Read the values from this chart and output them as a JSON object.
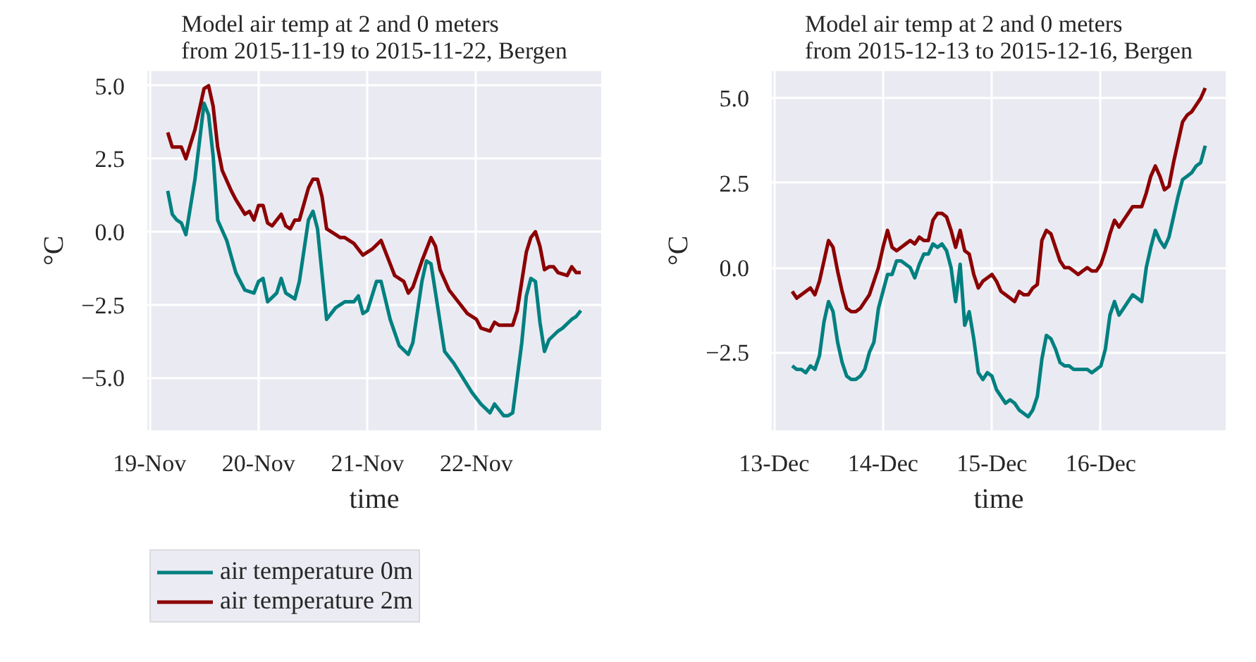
{
  "chart_data": [
    {
      "type": "line",
      "title": "Model air temp at 2 and 0 meters\nfrom 2015-11-19 to 2015-11-22, Bergen",
      "xlabel": "time",
      "ylabel": "°C",
      "xlim": [
        "2015-11-18T23:30",
        "2015-11-23T03:30"
      ],
      "ylim": [
        -6.8,
        5.5
      ],
      "xticks": [
        {
          "value": "2015-11-19",
          "label": "19-Nov"
        },
        {
          "value": "2015-11-20",
          "label": "20-Nov"
        },
        {
          "value": "2015-11-21",
          "label": "21-Nov"
        },
        {
          "value": "2015-11-22",
          "label": "22-Nov"
        }
      ],
      "yticks": [
        {
          "value": -5,
          "label": "−5.0"
        },
        {
          "value": -2.5,
          "label": "−2.5"
        },
        {
          "value": 0,
          "label": "0.0"
        },
        {
          "value": 2.5,
          "label": "2.5"
        },
        {
          "value": 5,
          "label": "5.0"
        }
      ],
      "grid": true,
      "legend": "bottom",
      "series": [
        {
          "name": "air temperature 0m",
          "color": "#008080",
          "x": [
            "2015-11-19T04:00",
            "2015-11-19T05:00",
            "2015-11-19T06:00",
            "2015-11-19T07:00",
            "2015-11-19T08:00",
            "2015-11-19T10:00",
            "2015-11-19T12:00",
            "2015-11-19T13:00",
            "2015-11-19T14:00",
            "2015-11-19T15:00",
            "2015-11-19T17:00",
            "2015-11-19T19:00",
            "2015-11-19T21:00",
            "2015-11-19T23:00",
            "2015-11-20T00:00",
            "2015-11-20T01:00",
            "2015-11-20T02:00",
            "2015-11-20T04:00",
            "2015-11-20T05:00",
            "2015-11-20T06:00",
            "2015-11-20T08:00",
            "2015-11-20T09:00",
            "2015-11-20T11:00",
            "2015-11-20T12:00",
            "2015-11-20T13:00",
            "2015-11-20T15:00",
            "2015-11-20T17:00",
            "2015-11-20T19:00",
            "2015-11-20T21:00",
            "2015-11-20T22:00",
            "2015-11-20T23:00",
            "2015-11-21T00:00",
            "2015-11-21T02:00",
            "2015-11-21T03:00",
            "2015-11-21T05:00",
            "2015-11-21T07:00",
            "2015-11-21T09:00",
            "2015-11-21T10:00",
            "2015-11-21T12:00",
            "2015-11-21T13:00",
            "2015-11-21T14:00",
            "2015-11-21T16:00",
            "2015-11-21T17:00",
            "2015-11-21T19:00",
            "2015-11-21T21:00",
            "2015-11-21T23:00",
            "2015-11-22T01:00",
            "2015-11-22T03:00",
            "2015-11-22T04:00",
            "2015-11-22T06:00",
            "2015-11-22T07:00",
            "2015-11-22T08:00",
            "2015-11-22T10:00",
            "2015-11-22T11:00",
            "2015-11-22T12:00",
            "2015-11-22T13:00",
            "2015-11-22T14:00",
            "2015-11-22T15:00",
            "2015-11-22T16:00",
            "2015-11-22T18:00",
            "2015-11-22T19:00",
            "2015-11-22T21:00",
            "2015-11-22T22:00",
            "2015-11-22T23:00"
          ],
          "values": [
            1.4,
            0.6,
            0.4,
            0.3,
            -0.1,
            1.8,
            4.4,
            4.0,
            2.6,
            0.4,
            -0.3,
            -1.4,
            -2.0,
            -2.1,
            -1.7,
            -1.6,
            -2.4,
            -2.1,
            -1.6,
            -2.1,
            -2.3,
            -1.7,
            0.4,
            0.7,
            0.1,
            -3.0,
            -2.6,
            -2.4,
            -2.4,
            -2.2,
            -2.8,
            -2.7,
            -1.7,
            -1.7,
            -3.0,
            -3.9,
            -4.2,
            -3.8,
            -1.7,
            -1.0,
            -1.1,
            -3.1,
            -4.1,
            -4.5,
            -5.0,
            -5.5,
            -5.9,
            -6.2,
            -5.9,
            -6.3,
            -6.3,
            -6.2,
            -3.8,
            -2.2,
            -1.6,
            -1.7,
            -3.1,
            -4.1,
            -3.7,
            -3.4,
            -3.3,
            -3.0,
            -2.9,
            -2.7
          ]
        },
        {
          "name": "air temperature 2m",
          "color": "#8b0000",
          "x": [
            "2015-11-19T04:00",
            "2015-11-19T05:00",
            "2015-11-19T07:00",
            "2015-11-19T08:00",
            "2015-11-19T10:00",
            "2015-11-19T12:00",
            "2015-11-19T13:00",
            "2015-11-19T14:00",
            "2015-11-19T15:00",
            "2015-11-19T16:00",
            "2015-11-19T18:00",
            "2015-11-19T19:00",
            "2015-11-19T21:00",
            "2015-11-19T22:00",
            "2015-11-19T23:00",
            "2015-11-20T00:00",
            "2015-11-20T01:00",
            "2015-11-20T02:00",
            "2015-11-20T03:00",
            "2015-11-20T05:00",
            "2015-11-20T06:00",
            "2015-11-20T07:00",
            "2015-11-20T08:00",
            "2015-11-20T09:00",
            "2015-11-20T11:00",
            "2015-11-20T12:00",
            "2015-11-20T13:00",
            "2015-11-20T14:00",
            "2015-11-20T15:00",
            "2015-11-20T17:00",
            "2015-11-20T18:00",
            "2015-11-20T19:00",
            "2015-11-20T21:00",
            "2015-11-20T23:00",
            "2015-11-21T01:00",
            "2015-11-21T03:00",
            "2015-11-21T05:00",
            "2015-11-21T06:00",
            "2015-11-21T08:00",
            "2015-11-21T09:00",
            "2015-11-21T10:00",
            "2015-11-21T12:00",
            "2015-11-21T14:00",
            "2015-11-21T15:00",
            "2015-11-21T16:00",
            "2015-11-21T18:00",
            "2015-11-21T20:00",
            "2015-11-21T22:00",
            "2015-11-22T00:00",
            "2015-11-22T01:00",
            "2015-11-22T03:00",
            "2015-11-22T04:00",
            "2015-11-22T05:00",
            "2015-11-22T07:00",
            "2015-11-22T08:00",
            "2015-11-22T09:00",
            "2015-11-22T10:00",
            "2015-11-22T11:00",
            "2015-11-22T12:00",
            "2015-11-22T13:00",
            "2015-11-22T14:00",
            "2015-11-22T15:00",
            "2015-11-22T16:00",
            "2015-11-22T17:00",
            "2015-11-22T18:00",
            "2015-11-22T20:00",
            "2015-11-22T21:00",
            "2015-11-22T22:00",
            "2015-11-22T23:00"
          ],
          "values": [
            3.4,
            2.9,
            2.9,
            2.5,
            3.5,
            4.9,
            5.0,
            4.3,
            2.9,
            2.1,
            1.4,
            1.1,
            0.6,
            0.7,
            0.4,
            0.9,
            0.9,
            0.3,
            0.2,
            0.6,
            0.2,
            0.1,
            0.4,
            0.4,
            1.5,
            1.8,
            1.8,
            1.2,
            0.1,
            -0.1,
            -0.2,
            -0.2,
            -0.4,
            -0.8,
            -0.6,
            -0.3,
            -1.1,
            -1.5,
            -1.7,
            -2.1,
            -1.9,
            -1.0,
            -0.2,
            -0.5,
            -1.3,
            -2.0,
            -2.4,
            -2.8,
            -3.0,
            -3.3,
            -3.4,
            -3.1,
            -3.2,
            -3.2,
            -3.2,
            -2.7,
            -1.7,
            -0.7,
            -0.2,
            0.0,
            -0.5,
            -1.3,
            -1.2,
            -1.2,
            -1.4,
            -1.5,
            -1.2,
            -1.4,
            -1.4
          ]
        }
      ]
    },
    {
      "type": "line",
      "title": "Model air temp at 2 and 0 meters\nfrom 2015-12-13 to 2015-12-16, Bergen",
      "xlabel": "time",
      "ylabel": "°C",
      "xlim": [
        "2015-12-12T23:30",
        "2015-12-17T03:30"
      ],
      "ylim": [
        -4.8,
        5.8
      ],
      "xticks": [
        {
          "value": "2015-12-13",
          "label": "13-Dec"
        },
        {
          "value": "2015-12-14",
          "label": "14-Dec"
        },
        {
          "value": "2015-12-15",
          "label": "15-Dec"
        },
        {
          "value": "2015-12-16",
          "label": "16-Dec"
        }
      ],
      "yticks": [
        {
          "value": -2.5,
          "label": "−2.5"
        },
        {
          "value": 0,
          "label": "0.0"
        },
        {
          "value": 2.5,
          "label": "2.5"
        },
        {
          "value": 5,
          "label": "5.0"
        }
      ],
      "grid": true,
      "x": [
        "2015-12-13T04:00",
        "2015-12-13T05:00",
        "2015-12-13T06:00",
        "2015-12-13T07:00",
        "2015-12-13T08:00",
        "2015-12-13T09:00",
        "2015-12-13T10:00",
        "2015-12-13T11:00",
        "2015-12-13T12:00",
        "2015-12-13T13:00",
        "2015-12-13T14:00",
        "2015-12-13T15:00",
        "2015-12-13T16:00",
        "2015-12-13T17:00",
        "2015-12-13T18:00",
        "2015-12-13T19:00",
        "2015-12-13T20:00",
        "2015-12-13T21:00",
        "2015-12-13T22:00",
        "2015-12-13T23:00",
        "2015-12-14T00:00",
        "2015-12-14T01:00",
        "2015-12-14T02:00",
        "2015-12-14T03:00",
        "2015-12-14T04:00",
        "2015-12-14T05:00",
        "2015-12-14T06:00",
        "2015-12-14T07:00",
        "2015-12-14T08:00",
        "2015-12-14T09:00",
        "2015-12-14T10:00",
        "2015-12-14T11:00",
        "2015-12-14T12:00",
        "2015-12-14T13:00",
        "2015-12-14T14:00",
        "2015-12-14T15:00",
        "2015-12-14T16:00",
        "2015-12-14T17:00",
        "2015-12-14T18:00",
        "2015-12-14T19:00",
        "2015-12-14T20:00",
        "2015-12-14T21:00",
        "2015-12-14T22:00",
        "2015-12-14T23:00",
        "2015-12-15T00:00",
        "2015-12-15T01:00",
        "2015-12-15T02:00",
        "2015-12-15T03:00",
        "2015-12-15T04:00",
        "2015-12-15T05:00",
        "2015-12-15T06:00",
        "2015-12-15T07:00",
        "2015-12-15T08:00",
        "2015-12-15T09:00",
        "2015-12-15T10:00",
        "2015-12-15T11:00",
        "2015-12-15T12:00",
        "2015-12-15T13:00",
        "2015-12-15T14:00",
        "2015-12-15T15:00",
        "2015-12-15T16:00",
        "2015-12-15T17:00",
        "2015-12-15T18:00",
        "2015-12-15T19:00",
        "2015-12-15T20:00",
        "2015-12-15T21:00",
        "2015-12-15T22:00",
        "2015-12-15T23:00",
        "2015-12-16T00:00",
        "2015-12-16T01:00",
        "2015-12-16T02:00",
        "2015-12-16T03:00",
        "2015-12-16T04:00",
        "2015-12-16T05:00",
        "2015-12-16T06:00",
        "2015-12-16T07:00",
        "2015-12-16T08:00",
        "2015-12-16T09:00",
        "2015-12-16T10:00",
        "2015-12-16T11:00",
        "2015-12-16T12:00",
        "2015-12-16T13:00",
        "2015-12-16T14:00",
        "2015-12-16T15:00",
        "2015-12-16T16:00",
        "2015-12-16T17:00",
        "2015-12-16T18:00",
        "2015-12-16T19:00",
        "2015-12-16T20:00",
        "2015-12-16T21:00",
        "2015-12-16T22:00",
        "2015-12-16T23:00"
      ],
      "series": [
        {
          "color": "#008080",
          "values": [
            -2.9,
            -3.0,
            -3.0,
            -3.1,
            -2.9,
            -3.0,
            -2.6,
            -1.6,
            -1.0,
            -1.3,
            -2.2,
            -2.8,
            -3.2,
            -3.3,
            -3.3,
            -3.2,
            -3.0,
            -2.5,
            -2.2,
            -1.2,
            -0.7,
            -0.2,
            -0.2,
            0.2,
            0.2,
            0.1,
            0.0,
            -0.3,
            0.1,
            0.4,
            0.4,
            0.7,
            0.6,
            0.7,
            0.5,
            0.0,
            -1.0,
            0.1,
            -1.7,
            -1.3,
            -2.1,
            -3.1,
            -3.3,
            -3.1,
            -3.2,
            -3.6,
            -3.8,
            -4.0,
            -3.9,
            -4.0,
            -4.2,
            -4.3,
            -4.4,
            -4.2,
            -3.8,
            -2.7,
            -2.0,
            -2.1,
            -2.4,
            -2.8,
            -2.9,
            -2.9,
            -3.0,
            -3.0,
            -3.0,
            -3.0,
            -3.1,
            -3.0,
            -2.9,
            -2.4,
            -1.4,
            -1.0,
            -1.4,
            -1.2,
            -1.0,
            -0.8,
            -0.9,
            -1.0,
            0.0,
            0.6,
            1.1,
            0.8,
            0.6,
            0.9,
            1.5,
            2.1,
            2.6,
            2.7,
            2.8,
            3.0,
            3.1,
            3.6
          ]
        },
        {
          "color": "#8b0000",
          "values": [
            -0.7,
            -0.9,
            -0.8,
            -0.7,
            -0.6,
            -0.8,
            -0.4,
            0.2,
            0.8,
            0.6,
            -0.1,
            -0.7,
            -1.2,
            -1.3,
            -1.3,
            -1.2,
            -1.0,
            -0.8,
            -0.4,
            0.0,
            0.6,
            1.1,
            0.6,
            0.5,
            0.6,
            0.7,
            0.8,
            0.7,
            0.9,
            0.8,
            0.8,
            1.4,
            1.6,
            1.6,
            1.5,
            1.1,
            0.6,
            1.1,
            0.5,
            0.4,
            -0.2,
            -0.6,
            -0.4,
            -0.3,
            -0.2,
            -0.4,
            -0.7,
            -0.8,
            -0.9,
            -1.0,
            -0.7,
            -0.8,
            -0.8,
            -0.6,
            -0.5,
            0.8,
            1.1,
            1.0,
            0.6,
            0.2,
            0.0,
            0.0,
            -0.1,
            -0.2,
            -0.1,
            0.0,
            -0.1,
            -0.1,
            0.1,
            0.5,
            1.0,
            1.4,
            1.2,
            1.4,
            1.6,
            1.8,
            1.8,
            1.8,
            2.2,
            2.7,
            3.0,
            2.7,
            2.3,
            2.4,
            3.1,
            3.7,
            4.3,
            4.5,
            4.6,
            4.8,
            5.0,
            5.3
          ]
        }
      ]
    }
  ]
}
